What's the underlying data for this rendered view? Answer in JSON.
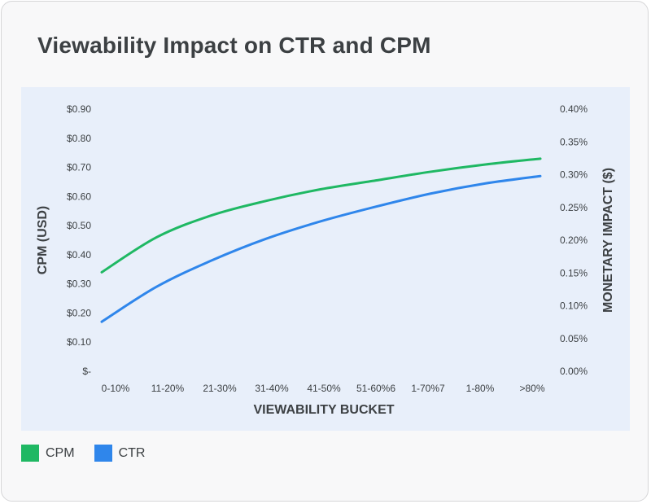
{
  "title": "Viewability Impact on CTR and CPM",
  "chart_data": {
    "type": "line",
    "categories": [
      "0-10%",
      "11-20%",
      "21-30%",
      "31-40%",
      "41-50%",
      "51-60%6",
      "1-70%7",
      "1-80%",
      ">80%"
    ],
    "xlabel": "VIEWABILITY BUCKET",
    "ylabel_left": "CPM (USD)",
    "ylabel_right": "MONETARY IMPACT ($)",
    "y_left_ticks": [
      "$-",
      "$0.10",
      "$0.20",
      "$0.30",
      "$0.40",
      "$0.50",
      "$0.60",
      "$0.70",
      "$0.80",
      "$0.90"
    ],
    "y_left_range": [
      0,
      0.9
    ],
    "y_right_ticks": [
      "0.00%",
      "0.05%",
      "0.10%",
      "0.15%",
      "0.20%",
      "0.25%",
      "0.30%",
      "0.35%",
      "0.40%"
    ],
    "y_right_range": [
      0,
      0.4
    ],
    "series": [
      {
        "name": "CPM",
        "axis": "left",
        "color": "#1fb863",
        "values": [
          0.34,
          0.46,
          0.535,
          0.585,
          0.625,
          0.655,
          0.685,
          0.71,
          0.73
        ]
      },
      {
        "name": "CTR",
        "axis": "left",
        "color": "#2f86eb",
        "values": [
          0.17,
          0.29,
          0.38,
          0.455,
          0.515,
          0.565,
          0.61,
          0.645,
          0.67
        ]
      }
    ]
  },
  "legend": [
    {
      "label": "CPM",
      "color": "#1fb863"
    },
    {
      "label": "CTR",
      "color": "#2f86eb"
    }
  ]
}
